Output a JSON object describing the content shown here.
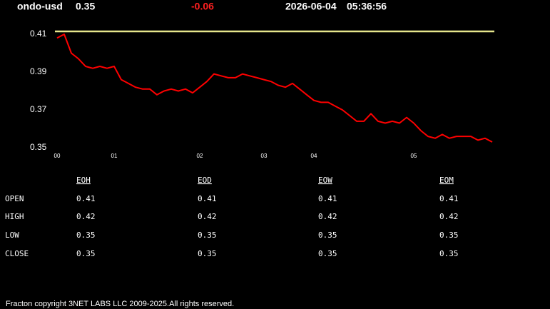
{
  "header": {
    "symbol": "ondo-usd",
    "price": "0.35",
    "change": "-0.06",
    "date": "2026-06-04",
    "time": "05:36:56"
  },
  "chart_data": {
    "type": "line",
    "x": [
      0,
      1,
      2,
      3,
      4,
      5,
      6,
      7,
      8,
      9,
      10,
      11,
      12,
      13,
      14,
      15,
      16,
      17,
      18,
      19,
      20,
      21,
      22,
      23,
      24,
      25,
      26,
      27,
      28,
      29,
      30,
      31,
      32,
      33,
      34,
      35,
      36,
      37,
      38,
      39,
      40,
      41,
      42,
      43,
      44,
      45,
      46,
      47,
      48,
      49,
      50,
      51,
      52,
      53,
      54,
      55,
      56,
      57,
      58,
      59,
      60,
      61
    ],
    "values": [
      0.408,
      0.41,
      0.4,
      0.397,
      0.393,
      0.392,
      0.393,
      0.392,
      0.393,
      0.386,
      0.384,
      0.382,
      0.381,
      0.381,
      0.378,
      0.38,
      0.381,
      0.38,
      0.381,
      0.379,
      0.382,
      0.385,
      0.389,
      0.388,
      0.387,
      0.387,
      0.389,
      0.388,
      0.387,
      0.386,
      0.385,
      0.383,
      0.382,
      0.384,
      0.381,
      0.378,
      0.375,
      0.374,
      0.374,
      0.372,
      0.37,
      0.367,
      0.364,
      0.364,
      0.368,
      0.364,
      0.363,
      0.364,
      0.363,
      0.366,
      0.363,
      0.359,
      0.356,
      0.355,
      0.357,
      0.355,
      0.356,
      0.356,
      0.356,
      0.354,
      0.355,
      0.353
    ],
    "color": "#ff0000",
    "reference_line": {
      "value": 0.4115,
      "color": "#e6e68c"
    },
    "xlim": [
      0,
      61
    ],
    "xticks": [
      {
        "value": 0,
        "label": "00"
      },
      {
        "value": 8,
        "label": "01"
      },
      {
        "value": 20,
        "label": "02"
      },
      {
        "value": 29,
        "label": "03"
      },
      {
        "value": 36,
        "label": "04"
      },
      {
        "value": 50,
        "label": "05"
      }
    ],
    "ylim": [
      0.348,
      0.413
    ],
    "yticks": [
      0.41,
      0.39,
      0.37,
      0.35
    ],
    "grid": false
  },
  "table": {
    "columns": [
      "EOH",
      "EOD",
      "EOW",
      "EOM"
    ],
    "rows": [
      [
        "OPEN",
        "0.41",
        "0.41",
        "0.41",
        "0.41"
      ],
      [
        "HIGH",
        "0.42",
        "0.42",
        "0.42",
        "0.42"
      ],
      [
        "LOW",
        "0.35",
        "0.35",
        "0.35",
        "0.35"
      ],
      [
        "CLOSE",
        "0.35",
        "0.35",
        "0.35",
        "0.35"
      ]
    ]
  },
  "footer": "Fracton copyright 3NET LABS LLC 2009-2025.All rights reserved."
}
